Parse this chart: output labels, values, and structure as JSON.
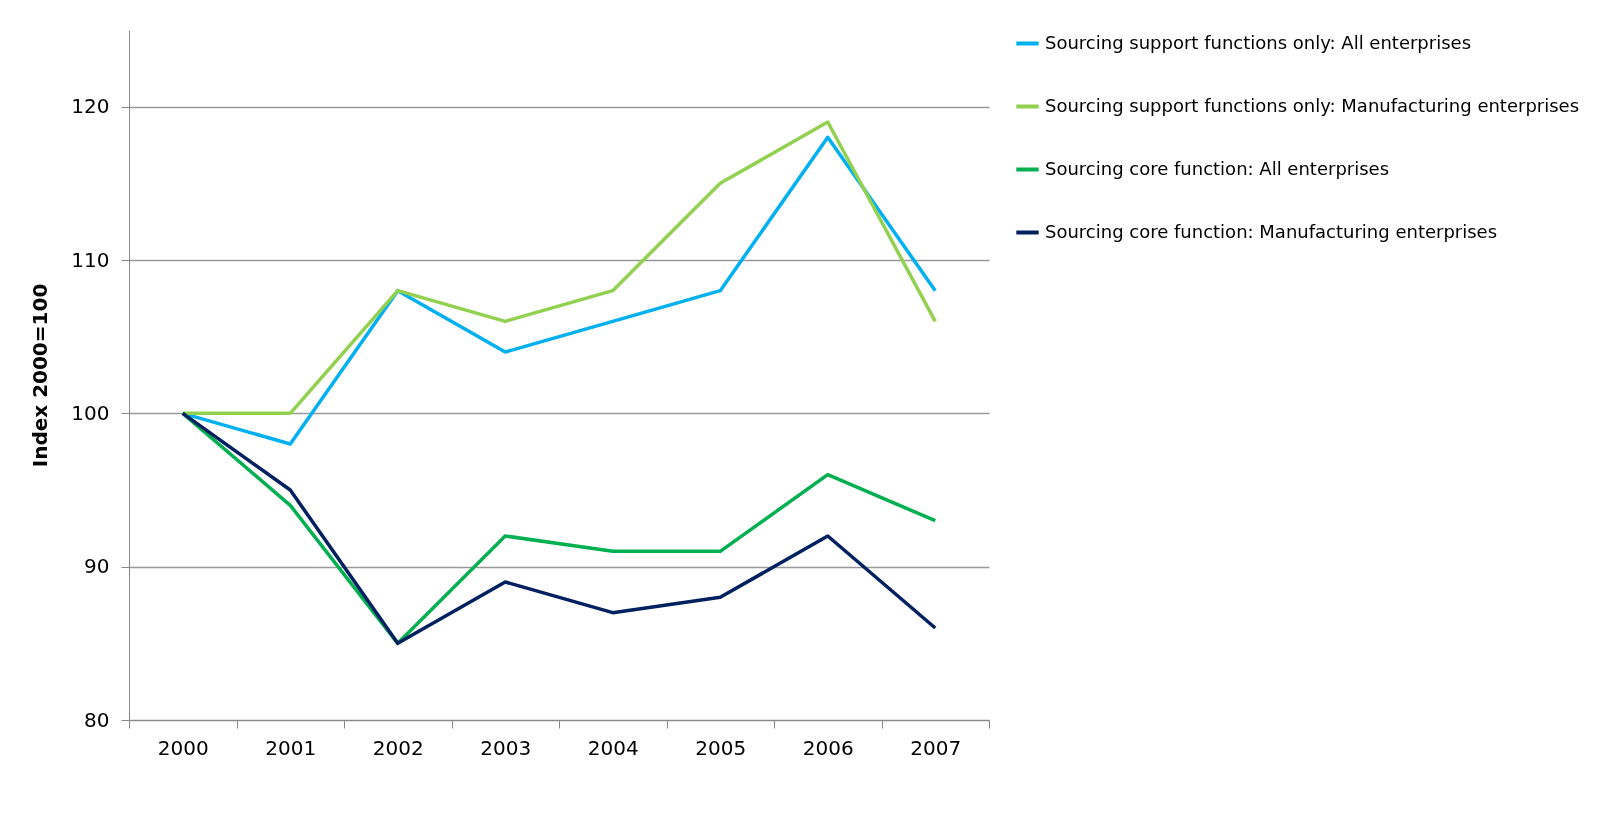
{
  "chart_data": {
    "type": "line",
    "ylabel": "Index 2000=100",
    "categories": [
      "2000",
      "2001",
      "2002",
      "2003",
      "2004",
      "2005",
      "2006",
      "2007"
    ],
    "series": [
      {
        "name": "Sourcing support functions only: All enterprises",
        "color": "#00b0f0",
        "values": [
          100,
          98,
          108,
          104,
          106,
          108,
          118,
          108
        ]
      },
      {
        "name": "Sourcing support functions only: Manufacturing enterprises",
        "color": "#92d050",
        "values": [
          100,
          100,
          108,
          106,
          108,
          115,
          119,
          106
        ]
      },
      {
        "name": "Sourcing core function: All enterprises",
        "color": "#00b050",
        "values": [
          100,
          94,
          85,
          92,
          91,
          91,
          96,
          93
        ]
      },
      {
        "name": "Sourcing core function: Manufacturing enterprises",
        "color": "#002060",
        "values": [
          100,
          95,
          85,
          89,
          87,
          88,
          92,
          86
        ]
      }
    ],
    "ylim": [
      80,
      125
    ],
    "yticks": [
      80,
      90,
      100,
      110,
      120
    ],
    "grid": "y",
    "legend": "right",
    "marker": "none",
    "line_style": "solid"
  }
}
